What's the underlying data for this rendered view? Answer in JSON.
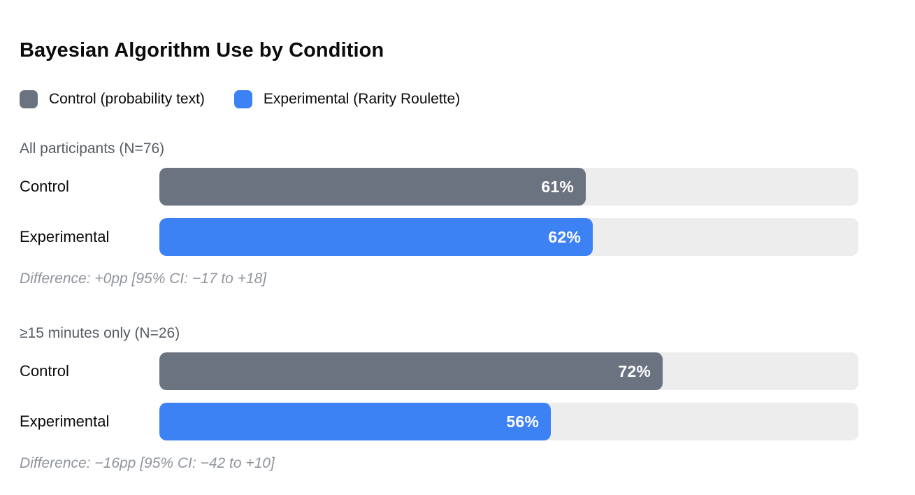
{
  "title": "Bayesian Algorithm Use by Condition",
  "colors": {
    "control": "#6b7280",
    "experimental": "#3d82f4",
    "track": "#ededed"
  },
  "legend": [
    {
      "label": "Control (probability text)",
      "series": "control",
      "color": "#6b7280"
    },
    {
      "label": "Experimental (Rarity Roulette)",
      "series": "experimental",
      "color": "#3d82f4"
    }
  ],
  "chart_data": {
    "type": "bar",
    "title": "Bayesian Algorithm Use by Condition",
    "orientation": "horizontal",
    "unit": "percent",
    "xlim": [
      0,
      100
    ],
    "legend": [
      "Control (probability text)",
      "Experimental (Rarity Roulette)"
    ],
    "groups": [
      {
        "header": "All participants (N=76)",
        "bars": [
          {
            "label": "Control",
            "series": "control",
            "value": 61,
            "value_label": "61%"
          },
          {
            "label": "Experimental",
            "series": "experimental",
            "value": 62,
            "value_label": "62%"
          }
        ],
        "difference": "Difference: +0pp [95% CI: −17 to +18]"
      },
      {
        "header": "≥15 minutes only (N=26)",
        "bars": [
          {
            "label": "Control",
            "series": "control",
            "value": 72,
            "value_label": "72%"
          },
          {
            "label": "Experimental",
            "series": "experimental",
            "value": 56,
            "value_label": "56%"
          }
        ],
        "difference": "Difference: −16pp [95% CI: −42 to +10]"
      }
    ]
  }
}
